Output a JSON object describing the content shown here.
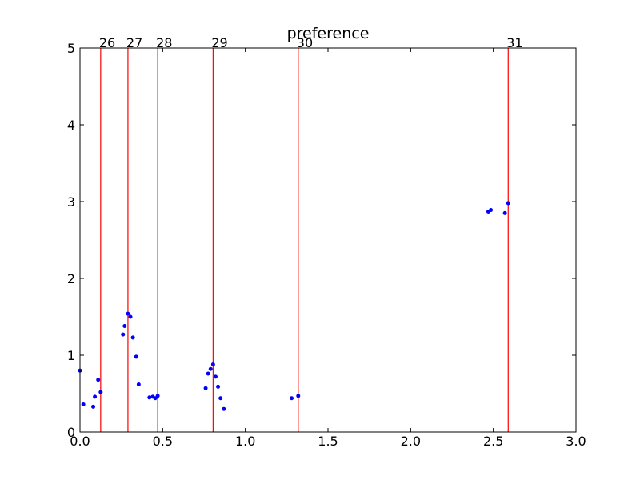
{
  "chart_data": {
    "type": "scatter",
    "title": "preference",
    "xlabel": "",
    "ylabel": "",
    "xlim": [
      0.0,
      3.0
    ],
    "ylim": [
      0,
      5
    ],
    "x_ticks": [
      "0.0",
      "0.5",
      "1.0",
      "1.5",
      "2.0",
      "2.5",
      "3.0"
    ],
    "y_ticks": [
      "0",
      "1",
      "2",
      "3",
      "4",
      "5"
    ],
    "grid": false,
    "colors": {
      "points": "#0000ff",
      "vlines": "#ff0000",
      "axes": "#000000"
    },
    "vlines": [
      {
        "label": "26",
        "x": 0.125
      },
      {
        "label": "27",
        "x": 0.29
      },
      {
        "label": "28",
        "x": 0.47
      },
      {
        "label": "29",
        "x": 0.805
      },
      {
        "label": "30",
        "x": 1.32
      },
      {
        "label": "31",
        "x": 2.59
      }
    ],
    "series": [
      {
        "points": [
          [
            0.0,
            0.8
          ],
          [
            0.02,
            0.36
          ],
          [
            0.08,
            0.33
          ],
          [
            0.09,
            0.46
          ],
          [
            0.11,
            0.68
          ],
          [
            0.125,
            0.52
          ],
          [
            0.26,
            1.27
          ],
          [
            0.27,
            1.38
          ],
          [
            0.29,
            1.54
          ],
          [
            0.305,
            1.5
          ],
          [
            0.32,
            1.23
          ],
          [
            0.34,
            0.98
          ],
          [
            0.355,
            0.62
          ],
          [
            0.42,
            0.45
          ],
          [
            0.44,
            0.46
          ],
          [
            0.455,
            0.44
          ],
          [
            0.47,
            0.47
          ],
          [
            0.76,
            0.57
          ],
          [
            0.775,
            0.76
          ],
          [
            0.79,
            0.82
          ],
          [
            0.805,
            0.88
          ],
          [
            0.82,
            0.72
          ],
          [
            0.835,
            0.59
          ],
          [
            0.85,
            0.44
          ],
          [
            0.87,
            0.3
          ],
          [
            1.28,
            0.44
          ],
          [
            1.32,
            0.47
          ],
          [
            2.47,
            2.87
          ],
          [
            2.485,
            2.89
          ],
          [
            2.57,
            2.85
          ],
          [
            2.59,
            2.98
          ]
        ]
      }
    ]
  }
}
